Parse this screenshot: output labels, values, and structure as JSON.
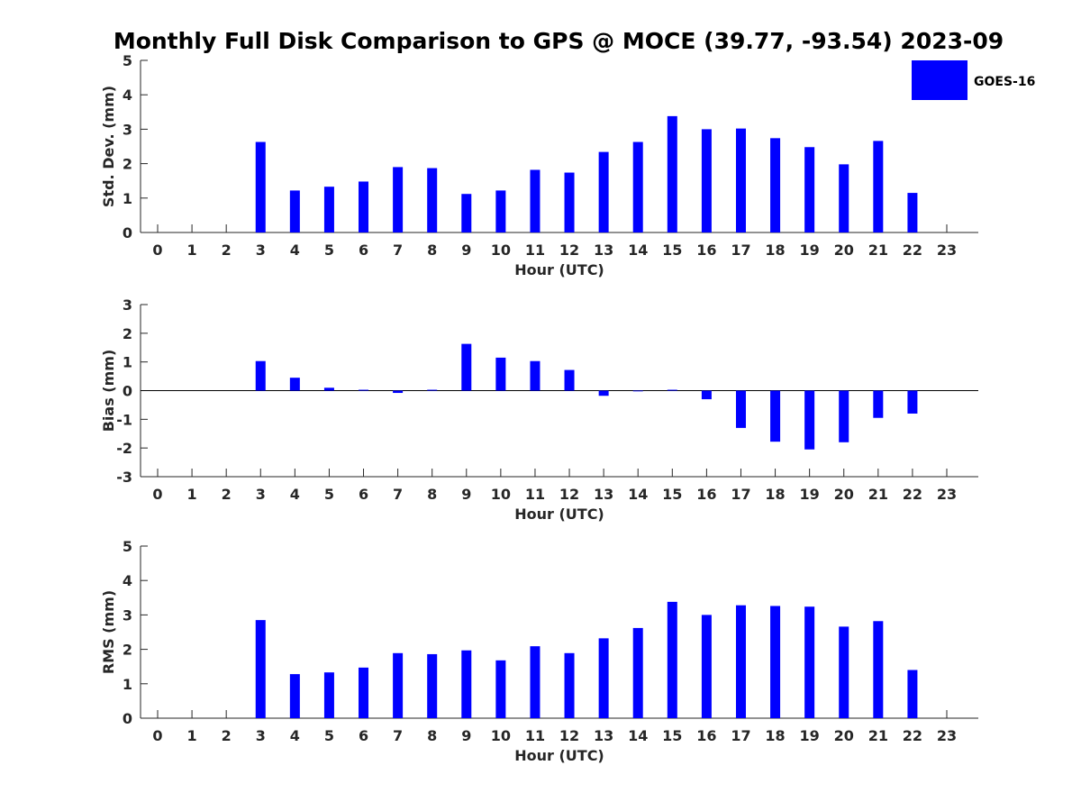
{
  "chart_data": {
    "type": "bar",
    "title": "Monthly Full Disk Comparison to GPS @ MOCE (39.77, -93.54) 2023-09",
    "legend": {
      "label": "GOES-16",
      "color": "#0000ff",
      "placement": "top-right"
    },
    "bar_color": "#0000ff",
    "categories": [
      "0",
      "1",
      "2",
      "3",
      "4",
      "5",
      "6",
      "7",
      "8",
      "9",
      "10",
      "11",
      "12",
      "13",
      "14",
      "15",
      "16",
      "17",
      "18",
      "19",
      "20",
      "21",
      "22",
      "23"
    ],
    "panels": [
      {
        "id": "std",
        "xlabel": "Hour (UTC)",
        "ylabel": "Std. Dev. (mm)",
        "ylim": [
          0,
          5
        ],
        "yticks": [
          0,
          1,
          2,
          3,
          4,
          5
        ],
        "zero_line": false,
        "values": [
          null,
          null,
          null,
          2.63,
          1.22,
          1.33,
          1.48,
          1.9,
          1.87,
          1.12,
          1.22,
          1.82,
          1.74,
          2.34,
          2.63,
          3.38,
          3.0,
          3.02,
          2.74,
          2.48,
          1.98,
          2.66,
          1.15,
          null
        ]
      },
      {
        "id": "bias",
        "xlabel": "Hour (UTC)",
        "ylabel": "Bias (mm)",
        "ylim": [
          -3,
          3
        ],
        "yticks": [
          -3,
          -2,
          -1,
          0,
          1,
          2,
          3
        ],
        "zero_line": true,
        "values": [
          null,
          null,
          null,
          1.03,
          0.45,
          0.1,
          0.03,
          -0.08,
          0.03,
          1.63,
          1.15,
          1.03,
          0.72,
          -0.18,
          -0.01,
          0.03,
          -0.3,
          -1.3,
          -1.78,
          -2.05,
          -1.8,
          -0.95,
          -0.8,
          null
        ]
      },
      {
        "id": "rms",
        "xlabel": "Hour (UTC)",
        "ylabel": "RMS (mm)",
        "ylim": [
          0,
          5
        ],
        "yticks": [
          0,
          1,
          2,
          3,
          4,
          5
        ],
        "zero_line": false,
        "values": [
          null,
          null,
          null,
          2.85,
          1.28,
          1.33,
          1.47,
          1.89,
          1.86,
          1.97,
          1.68,
          2.09,
          1.89,
          2.32,
          2.62,
          3.38,
          3.0,
          3.28,
          3.26,
          3.24,
          2.66,
          2.82,
          1.4,
          null
        ]
      }
    ]
  }
}
